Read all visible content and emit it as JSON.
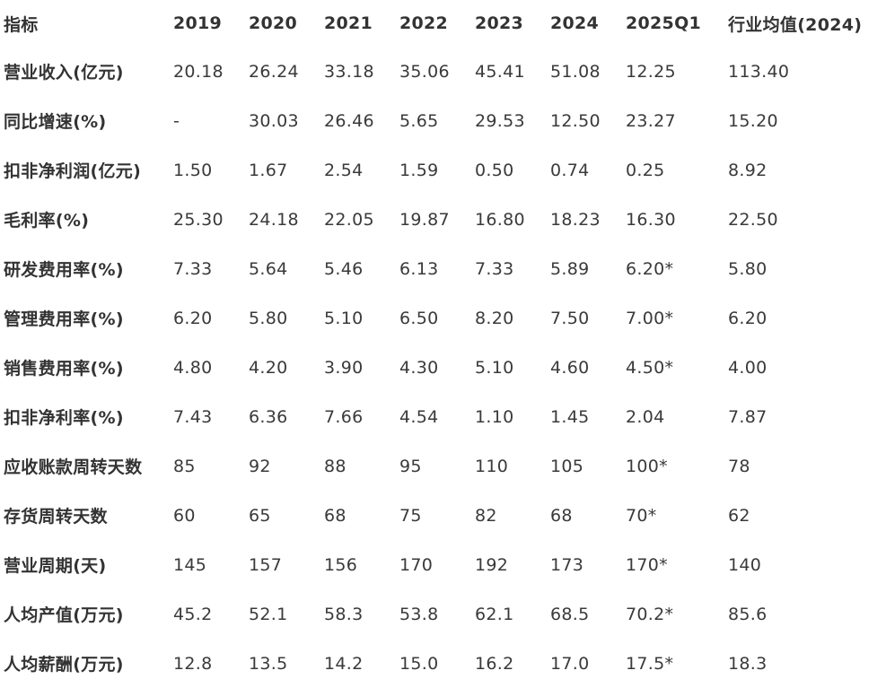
{
  "table": {
    "headers": [
      "指标",
      "2019",
      "2020",
      "2021",
      "2022",
      "2023",
      "2024",
      "2025Q1",
      "行业均值(2024)"
    ],
    "rows": [
      {
        "label": "营业收入(亿元)",
        "values": [
          "20.18",
          "26.24",
          "33.18",
          "35.06",
          "45.41",
          "51.08",
          "12.25",
          "113.40"
        ]
      },
      {
        "label": "同比增速(%)",
        "values": [
          "-",
          "30.03",
          "26.46",
          "5.65",
          "29.53",
          "12.50",
          "23.27",
          "15.20"
        ]
      },
      {
        "label": "扣非净利润(亿元)",
        "values": [
          "1.50",
          "1.67",
          "2.54",
          "1.59",
          "0.50",
          "0.74",
          "0.25",
          "8.92"
        ]
      },
      {
        "label": "毛利率(%)",
        "values": [
          "25.30",
          "24.18",
          "22.05",
          "19.87",
          "16.80",
          "18.23",
          "16.30",
          "22.50"
        ]
      },
      {
        "label": "研发费用率(%)",
        "values": [
          "7.33",
          "5.64",
          "5.46",
          "6.13",
          "7.33",
          "5.89",
          "6.20*",
          "5.80"
        ]
      },
      {
        "label": "管理费用率(%)",
        "values": [
          "6.20",
          "5.80",
          "5.10",
          "6.50",
          "8.20",
          "7.50",
          "7.00*",
          "6.20"
        ]
      },
      {
        "label": "销售费用率(%)",
        "values": [
          "4.80",
          "4.20",
          "3.90",
          "4.30",
          "5.10",
          "4.60",
          "4.50*",
          "4.00"
        ]
      },
      {
        "label": "扣非净利率(%)",
        "values": [
          "7.43",
          "6.36",
          "7.66",
          "4.54",
          "1.10",
          "1.45",
          "2.04",
          "7.87"
        ]
      },
      {
        "label": "应收账款周转天数",
        "values": [
          "85",
          "92",
          "88",
          "95",
          "110",
          "105",
          "100*",
          "78"
        ]
      },
      {
        "label": "存货周转天数",
        "values": [
          "60",
          "65",
          "68",
          "75",
          "82",
          "68",
          "70*",
          "62"
        ]
      },
      {
        "label": "营业周期(天)",
        "values": [
          "145",
          "157",
          "156",
          "170",
          "192",
          "173",
          "170*",
          "140"
        ]
      },
      {
        "label": "人均产值(万元)",
        "values": [
          "45.2",
          "52.1",
          "58.3",
          "53.8",
          "62.1",
          "68.5",
          "70.2*",
          "85.6"
        ]
      },
      {
        "label": "人均薪酬(万元)",
        "values": [
          "12.8",
          "13.5",
          "14.2",
          "15.0",
          "16.2",
          "17.0",
          "17.5*",
          "18.3"
        ]
      }
    ]
  }
}
